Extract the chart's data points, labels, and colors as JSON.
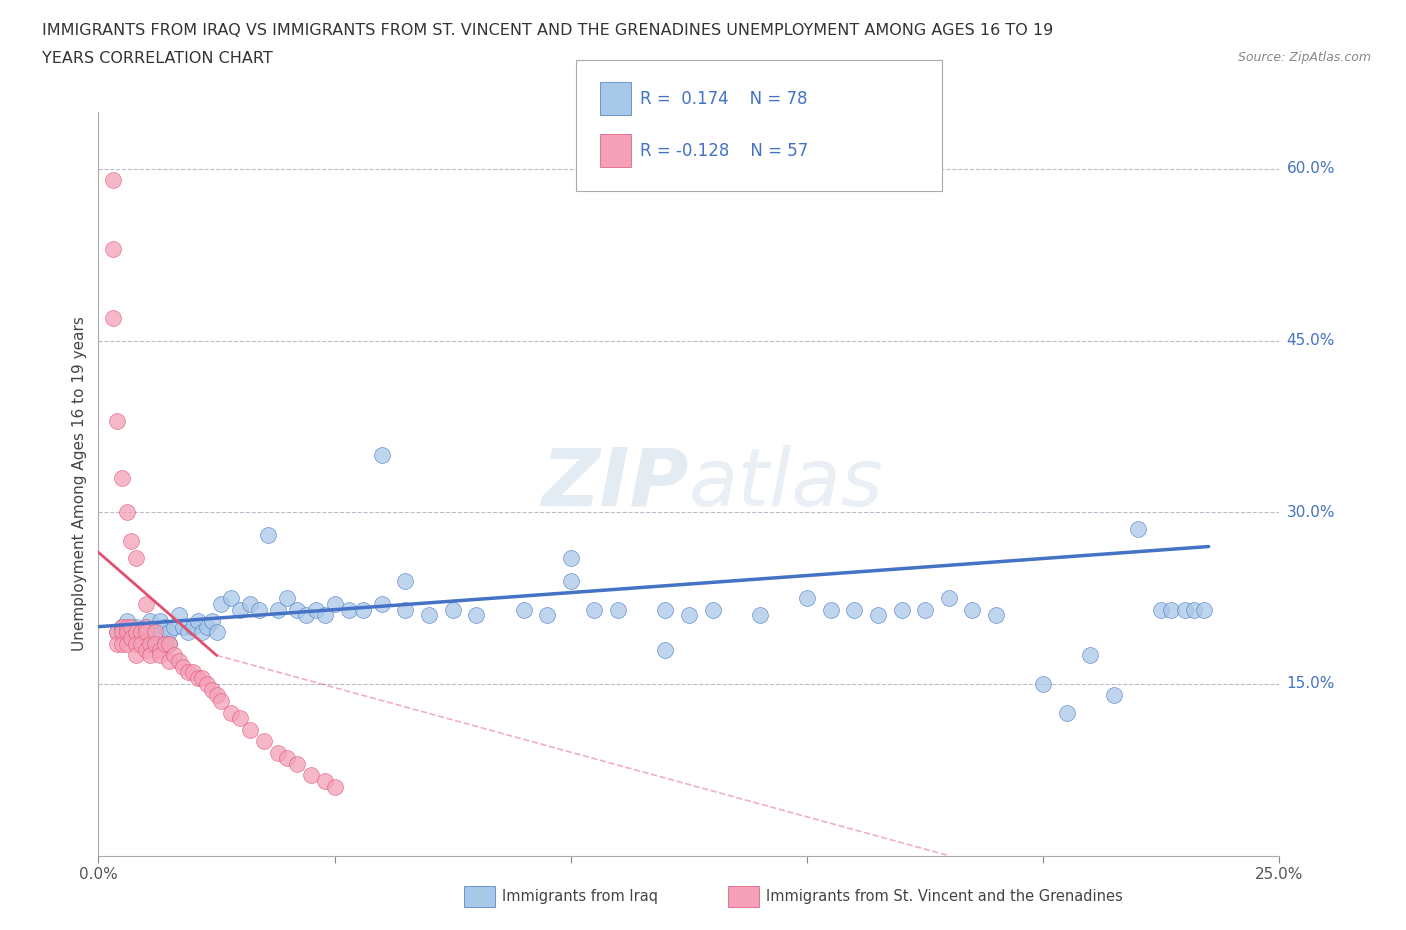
{
  "title_line1": "IMMIGRANTS FROM IRAQ VS IMMIGRANTS FROM ST. VINCENT AND THE GRENADINES UNEMPLOYMENT AMONG AGES 16 TO 19",
  "title_line2": "YEARS CORRELATION CHART",
  "source": "Source: ZipAtlas.com",
  "ylabel": "Unemployment Among Ages 16 to 19 years",
  "xlim": [
    0.0,
    0.25
  ],
  "ylim": [
    0.0,
    0.65
  ],
  "xtick_positions": [
    0.0,
    0.05,
    0.1,
    0.15,
    0.2,
    0.25
  ],
  "xtick_labels": [
    "0.0%",
    "",
    "",
    "",
    "",
    "25.0%"
  ],
  "ytick_vals_right": [
    0.6,
    0.45,
    0.3,
    0.15
  ],
  "ytick_labels_right": [
    "60.0%",
    "45.0%",
    "30.0%",
    "15.0%"
  ],
  "R_iraq": 0.174,
  "N_iraq": 78,
  "R_svg": -0.128,
  "N_svg": 57,
  "color_iraq": "#a8c8e8",
  "color_svg": "#f4a0b8",
  "line_color_iraq": "#4472c4",
  "line_color_svg": "#e05070",
  "watermark": "ZIPatlas",
  "legend_label_iraq": "Immigrants from Iraq",
  "legend_label_svg": "Immigrants from St. Vincent and the Grenadines",
  "iraq_x": [
    0.004,
    0.005,
    0.006,
    0.007,
    0.008,
    0.009,
    0.01,
    0.01,
    0.011,
    0.012,
    0.012,
    0.013,
    0.013,
    0.014,
    0.015,
    0.015,
    0.016,
    0.017,
    0.018,
    0.019,
    0.02,
    0.021,
    0.022,
    0.023,
    0.024,
    0.025,
    0.026,
    0.028,
    0.03,
    0.032,
    0.034,
    0.036,
    0.038,
    0.04,
    0.042,
    0.044,
    0.046,
    0.048,
    0.05,
    0.053,
    0.056,
    0.06,
    0.065,
    0.07,
    0.075,
    0.08,
    0.09,
    0.095,
    0.1,
    0.105,
    0.11,
    0.12,
    0.125,
    0.13,
    0.14,
    0.15,
    0.155,
    0.16,
    0.165,
    0.17,
    0.175,
    0.18,
    0.185,
    0.19,
    0.2,
    0.205,
    0.21,
    0.215,
    0.22,
    0.225,
    0.227,
    0.23,
    0.232,
    0.234,
    0.06,
    0.065,
    0.1,
    0.12
  ],
  "iraq_y": [
    0.195,
    0.2,
    0.205,
    0.195,
    0.2,
    0.195,
    0.2,
    0.19,
    0.205,
    0.195,
    0.185,
    0.195,
    0.205,
    0.2,
    0.195,
    0.185,
    0.2,
    0.21,
    0.2,
    0.195,
    0.2,
    0.205,
    0.195,
    0.2,
    0.205,
    0.195,
    0.22,
    0.225,
    0.215,
    0.22,
    0.215,
    0.28,
    0.215,
    0.225,
    0.215,
    0.21,
    0.215,
    0.21,
    0.22,
    0.215,
    0.215,
    0.22,
    0.215,
    0.21,
    0.215,
    0.21,
    0.215,
    0.21,
    0.24,
    0.215,
    0.215,
    0.215,
    0.21,
    0.215,
    0.21,
    0.225,
    0.215,
    0.215,
    0.21,
    0.215,
    0.215,
    0.225,
    0.215,
    0.21,
    0.15,
    0.125,
    0.175,
    0.14,
    0.285,
    0.215,
    0.215,
    0.215,
    0.215,
    0.215,
    0.35,
    0.24,
    0.26,
    0.18
  ],
  "svg_x": [
    0.003,
    0.003,
    0.004,
    0.004,
    0.005,
    0.005,
    0.005,
    0.006,
    0.006,
    0.006,
    0.007,
    0.007,
    0.008,
    0.008,
    0.008,
    0.009,
    0.009,
    0.01,
    0.01,
    0.01,
    0.011,
    0.011,
    0.012,
    0.012,
    0.013,
    0.013,
    0.014,
    0.015,
    0.015,
    0.016,
    0.017,
    0.018,
    0.019,
    0.02,
    0.021,
    0.022,
    0.023,
    0.024,
    0.025,
    0.026,
    0.028,
    0.03,
    0.032,
    0.035,
    0.038,
    0.04,
    0.042,
    0.045,
    0.048,
    0.05,
    0.003,
    0.004,
    0.005,
    0.006,
    0.007,
    0.008,
    0.01
  ],
  "svg_y": [
    0.59,
    0.53,
    0.195,
    0.185,
    0.2,
    0.195,
    0.185,
    0.2,
    0.195,
    0.185,
    0.2,
    0.19,
    0.195,
    0.185,
    0.175,
    0.195,
    0.185,
    0.2,
    0.195,
    0.18,
    0.185,
    0.175,
    0.195,
    0.185,
    0.18,
    0.175,
    0.185,
    0.185,
    0.17,
    0.175,
    0.17,
    0.165,
    0.16,
    0.16,
    0.155,
    0.155,
    0.15,
    0.145,
    0.14,
    0.135,
    0.125,
    0.12,
    0.11,
    0.1,
    0.09,
    0.085,
    0.08,
    0.07,
    0.065,
    0.06,
    0.47,
    0.38,
    0.33,
    0.3,
    0.275,
    0.26,
    0.22
  ]
}
